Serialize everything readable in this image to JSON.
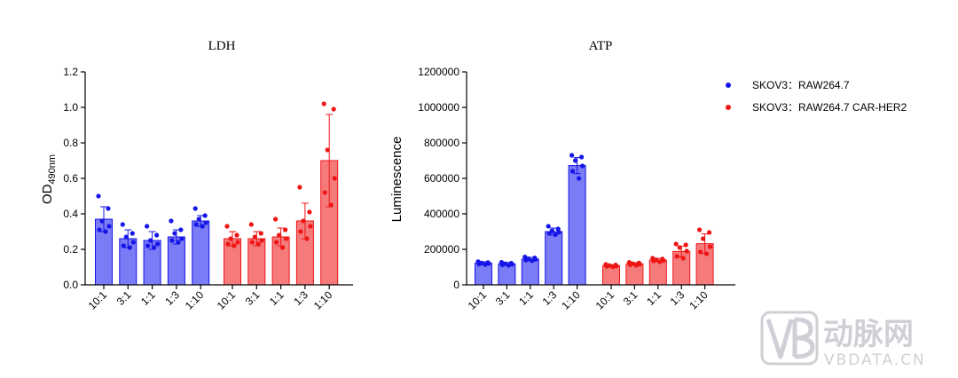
{
  "chart_data": [
    {
      "type": "bar",
      "title": "LDH",
      "ylabel": "OD",
      "ylabel_sub": "490nm",
      "ylim": [
        0,
        1.2
      ],
      "yticks": [
        "0.0",
        "0.2",
        "0.4",
        "0.6",
        "0.8",
        "1.0",
        "1.2"
      ],
      "ytick_values": [
        0,
        0.2,
        0.4,
        0.6,
        0.8,
        1.0,
        1.2
      ],
      "categories": [
        "10:1",
        "3:1",
        "1:1",
        "1:3",
        "1:10"
      ],
      "series": [
        {
          "name": "SKOV3：RAW264.7",
          "color": "#1515e8",
          "values": [
            0.37,
            0.26,
            0.25,
            0.27,
            0.36
          ],
          "errors": [
            0.07,
            0.05,
            0.05,
            0.04,
            0.03
          ],
          "points": [
            [
              0.5,
              0.43,
              0.36,
              0.33,
              0.31,
              0.3
            ],
            [
              0.34,
              0.29,
              0.27,
              0.24,
              0.22,
              0.21
            ],
            [
              0.33,
              0.28,
              0.25,
              0.23,
              0.22,
              0.21
            ],
            [
              0.36,
              0.31,
              0.29,
              0.26,
              0.25,
              0.24
            ],
            [
              0.43,
              0.39,
              0.37,
              0.35,
              0.34,
              0.33
            ]
          ]
        },
        {
          "name": "SKOV3：RAW264.7 CAR-HER2",
          "color": "#ee1515",
          "values": [
            0.26,
            0.26,
            0.27,
            0.36,
            0.7
          ],
          "errors": [
            0.04,
            0.04,
            0.05,
            0.1,
            0.26
          ],
          "points": [
            [
              0.33,
              0.28,
              0.26,
              0.24,
              0.23,
              0.22
            ],
            [
              0.34,
              0.29,
              0.27,
              0.25,
              0.24,
              0.23
            ],
            [
              0.37,
              0.31,
              0.28,
              0.26,
              0.24,
              0.21
            ],
            [
              0.55,
              0.41,
              0.36,
              0.33,
              0.3,
              0.26
            ],
            [
              1.02,
              0.99,
              0.76,
              0.6,
              0.52,
              0.45
            ]
          ]
        }
      ]
    },
    {
      "type": "bar",
      "title": "ATP",
      "ylabel": "Luminescence",
      "ylim": [
        0,
        1200000
      ],
      "yticks": [
        "0",
        "200000",
        "400000",
        "600000",
        "800000",
        "1000000",
        "1200000"
      ],
      "ytick_values": [
        0,
        200000,
        400000,
        600000,
        800000,
        1000000,
        1200000
      ],
      "categories": [
        "10:1",
        "3:1",
        "1:1",
        "1:3",
        "1:10"
      ],
      "series": [
        {
          "name": "SKOV3：RAW264.7",
          "color": "#1515e8",
          "values": [
            122000,
            118000,
            145000,
            300000,
            672000
          ],
          "errors": [
            8000,
            8000,
            10000,
            20000,
            45000
          ],
          "points": [
            [
              131000,
              126000,
              123000,
              120000,
              117000,
              114000
            ],
            [
              127000,
              122000,
              119000,
              116000,
              113000,
              110000
            ],
            [
              157000,
              152000,
              147000,
              143000,
              139000,
              136000
            ],
            [
              330000,
              315000,
              304000,
              296000,
              290000,
              283000
            ],
            [
              730000,
              720000,
              700000,
              670000,
              640000,
              600000
            ]
          ]
        },
        {
          "name": "SKOV3：RAW264.7 CAR-HER2",
          "color": "#ee1515",
          "values": [
            108000,
            118000,
            140000,
            188000,
            232000
          ],
          "errors": [
            6000,
            7000,
            9000,
            30000,
            55000
          ],
          "points": [
            [
              115000,
              112000,
              109000,
              106000,
              104000,
              101000
            ],
            [
              127000,
              123000,
              119000,
              116000,
              113000,
              110000
            ],
            [
              150000,
              146000,
              141000,
              137000,
              134000,
              130000
            ],
            [
              230000,
              225000,
              210000,
              190000,
              160000,
              150000
            ],
            [
              310000,
              295000,
              260000,
              215000,
              185000,
              175000
            ]
          ]
        }
      ]
    }
  ],
  "legend": {
    "placement": "top-right",
    "items": [
      {
        "label": "SKOV3：RAW264.7",
        "color": "#1515e8"
      },
      {
        "label": "SKOV3：RAW264.7 CAR-HER2",
        "color": "#ee1515"
      }
    ]
  },
  "watermark": {
    "cn_text": "动脉网",
    "en_text": "VBDATA.CN"
  }
}
